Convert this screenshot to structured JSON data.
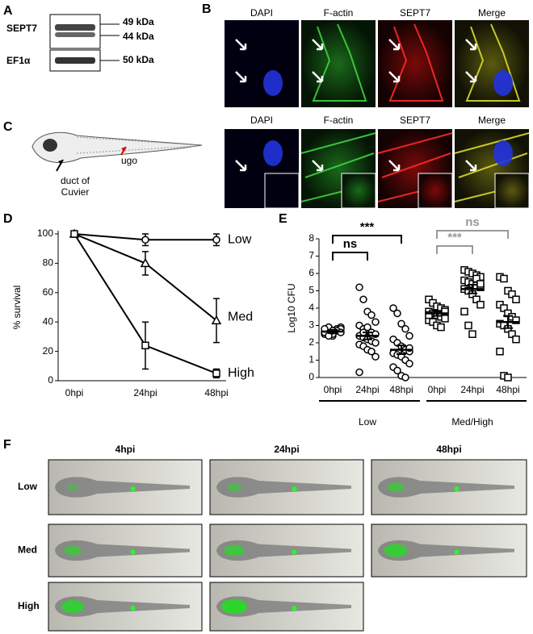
{
  "panel_labels": [
    "A",
    "B",
    "C",
    "D",
    "E",
    "F"
  ],
  "western_blot": {
    "rows": [
      {
        "protein": "SEPT7",
        "markers": [
          "49 kDa",
          "44 kDa"
        ]
      },
      {
        "protein": "EF1α",
        "markers": [
          "50 kDa"
        ]
      }
    ]
  },
  "microscopy": {
    "rows": [
      {
        "channels": [
          "DAPI",
          "F-actin",
          "SEPT7",
          "Merge"
        ]
      },
      {
        "channels": [
          "DAPI",
          "F-actin",
          "SEPT7",
          "Merge"
        ]
      }
    ]
  },
  "schematic": {
    "labels": [
      "duct of Cuvier",
      "ugo"
    ]
  },
  "chart_data": [
    {
      "type": "line",
      "ylabel": "% survival",
      "categories": [
        "0hpi",
        "24hpi",
        "48hpi"
      ],
      "ylim": [
        0,
        100
      ],
      "yticks": [
        0,
        20,
        40,
        60,
        80,
        100
      ],
      "series": [
        {
          "name": "Low",
          "color": "#000000",
          "marker": "circle",
          "values": [
            100,
            96,
            96
          ],
          "errors": [
            0,
            4,
            4
          ]
        },
        {
          "name": "Med",
          "color": "#000000",
          "marker": "triangle",
          "values": [
            100,
            80,
            41
          ],
          "errors": [
            0,
            8,
            15
          ]
        },
        {
          "name": "High",
          "color": "#000000",
          "marker": "square",
          "values": [
            100,
            24,
            5
          ],
          "errors": [
            0,
            16,
            3
          ]
        }
      ]
    },
    {
      "type": "dot",
      "ylabel": "Log10 CFU",
      "ylim": [
        0,
        8
      ],
      "yticks": [
        0,
        1,
        2,
        3,
        4,
        5,
        6,
        7,
        8
      ],
      "series": [
        {
          "name": "Low",
          "color": "#000000",
          "marker": "circle",
          "categories": [
            "0hpi",
            "24hpi",
            "48hpi"
          ],
          "points": [
            [
              2.5,
              2.6,
              2.7,
              2.8,
              2.9,
              2.6,
              2.5,
              2.4,
              2.7,
              2.8,
              2.6,
              2.9,
              2.5,
              2.7,
              2.6,
              2.8,
              2.4,
              2.7
            ],
            [
              5.2,
              4.5,
              3.8,
              3.6,
              3.2,
              3.0,
              2.8,
              2.7,
              2.6,
              2.5,
              2.4,
              2.3,
              2.2,
              2.1,
              2.0,
              1.9,
              1.8,
              1.6,
              1.5,
              1.2,
              0.3,
              2.6,
              2.9
            ],
            [
              4.0,
              3.7,
              3.1,
              2.8,
              2.4,
              2.2,
              2.0,
              1.8,
              1.6,
              1.5,
              1.4,
              1.3,
              1.2,
              1.0,
              0.8,
              0.6,
              0.4,
              0.1,
              0.0,
              1.7
            ]
          ],
          "means": [
            2.65,
            2.4,
            1.6
          ],
          "sem": [
            0.1,
            0.2,
            0.25
          ]
        },
        {
          "name": "Med/High",
          "color": "#000000",
          "marker": "square",
          "categories": [
            "0hpi",
            "24hpi",
            "48hpi"
          ],
          "points": [
            [
              4.5,
              4.3,
              4.1,
              4.0,
              3.9,
              3.8,
              3.7,
              3.6,
              3.5,
              3.4,
              3.3,
              3.2,
              3.0,
              2.9,
              3.8,
              3.6
            ],
            [
              6.2,
              6.1,
              6.0,
              5.9,
              5.8,
              5.6,
              5.5,
              5.4,
              5.3,
              5.2,
              5.1,
              5.0,
              4.8,
              4.5,
              4.2,
              3.8,
              3.0,
              2.5,
              5.7,
              5.4
            ],
            [
              5.8,
              5.7,
              5.0,
              4.8,
              4.5,
              4.2,
              4.0,
              3.7,
              3.5,
              3.3,
              3.1,
              3.0,
              2.8,
              2.5,
              2.2,
              1.5,
              0.1,
              0.0
            ]
          ],
          "means": [
            3.7,
            5.1,
            3.2
          ],
          "sem": [
            0.15,
            0.25,
            0.35
          ]
        }
      ],
      "annotations": [
        {
          "text": "***",
          "color": "#000000"
        },
        {
          "text": "ns",
          "color": "#000000"
        },
        {
          "text": "ns",
          "color": "#999999"
        },
        {
          "text": "***",
          "color": "#999999"
        }
      ]
    }
  ],
  "imaging": {
    "columns": [
      "4hpi",
      "24hpi",
      "48hpi"
    ],
    "rows": [
      "Low",
      "Med",
      "High"
    ]
  }
}
